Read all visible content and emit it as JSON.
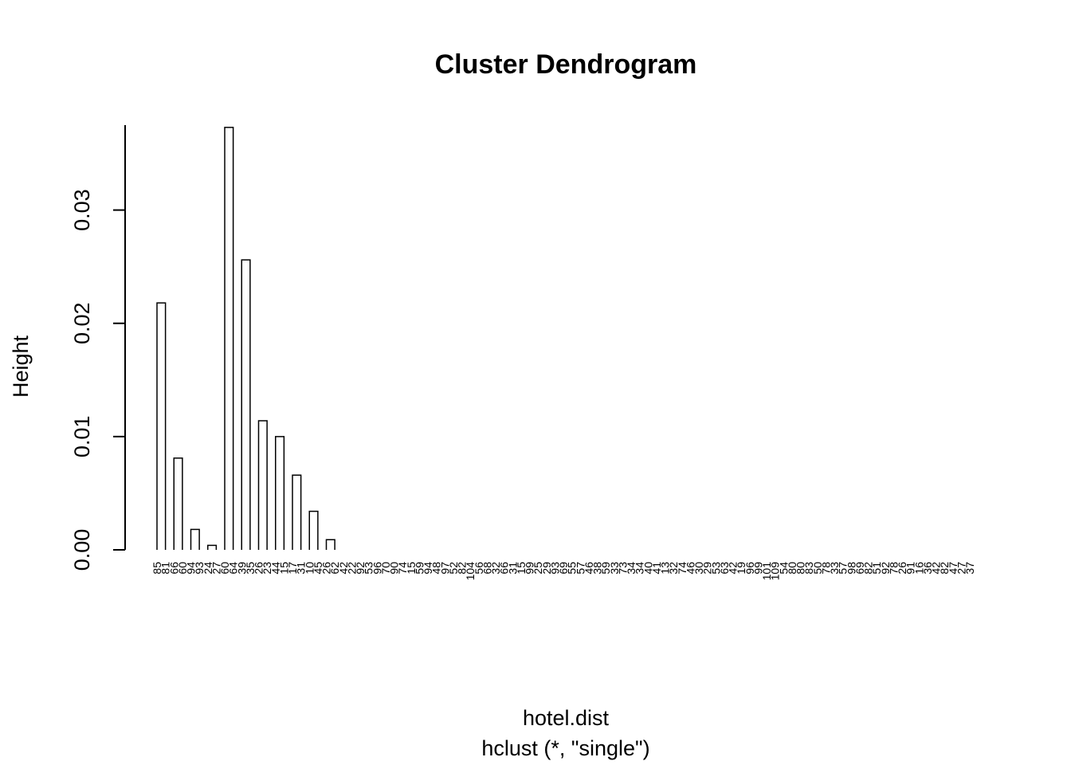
{
  "chart_data": {
    "type": "dendrogram",
    "title": "Cluster Dendrogram",
    "xlabel": "hotel.dist",
    "sub": "hclust (*, \"single\")",
    "ylabel": "Height",
    "ylim": [
      0,
      0.0375
    ],
    "yticks": [
      0.0,
      0.01,
      0.02,
      0.03
    ],
    "ytick_labels": [
      "0.00",
      "0.01",
      "0.02",
      "0.03"
    ],
    "leaves": [
      "85",
      "81",
      "66",
      "60",
      "94",
      "93",
      "24",
      "27",
      "60",
      "64",
      "39",
      "35",
      "26",
      "23",
      "44",
      "15",
      "17",
      "31",
      "10",
      "45",
      "26",
      "62",
      "42",
      "22",
      "92",
      "53",
      "96",
      "70",
      "90",
      "74",
      "15",
      "59",
      "94",
      "48",
      "97",
      "52",
      "82",
      "104",
      "56",
      "68",
      "32",
      "66",
      "31",
      "15",
      "99",
      "25",
      "29",
      "93",
      "69",
      "55",
      "57",
      "46",
      "38",
      "59",
      "33",
      "73",
      "34",
      "34",
      "40",
      "41",
      "13",
      "32",
      "74",
      "46",
      "30",
      "29",
      "53",
      "63",
      "42",
      "19",
      "96",
      "99",
      "101",
      "109",
      "54",
      "80",
      "80",
      "83",
      "50",
      "78",
      "33",
      "57",
      "98",
      "69",
      "82",
      "51",
      "92",
      "78",
      "26",
      "91",
      "16",
      "36",
      "42",
      "82",
      "47",
      "27",
      "37"
    ],
    "merges": [
      {
        "a": 0,
        "b": 1,
        "h": 0.0218
      },
      {
        "a": 2,
        "b": 3,
        "h": 0.0081
      },
      {
        "a": 4,
        "b": 5,
        "h": 0.0018
      },
      {
        "a": 6,
        "b": 7,
        "h": 0.0004
      },
      {
        "a": 8,
        "b": 9,
        "h": 0.0373
      },
      {
        "a": 10,
        "b": 11,
        "h": 0.0256
      },
      {
        "a": 12,
        "b": 13,
        "h": 0.0114
      },
      {
        "a": 14,
        "b": 15,
        "h": 0.01
      },
      {
        "a": 16,
        "b": 17,
        "h": 0.0066
      },
      {
        "a": 18,
        "b": 19,
        "h": 0.0034
      },
      {
        "a": 20,
        "b": 21,
        "h": 0.0009
      }
    ]
  }
}
